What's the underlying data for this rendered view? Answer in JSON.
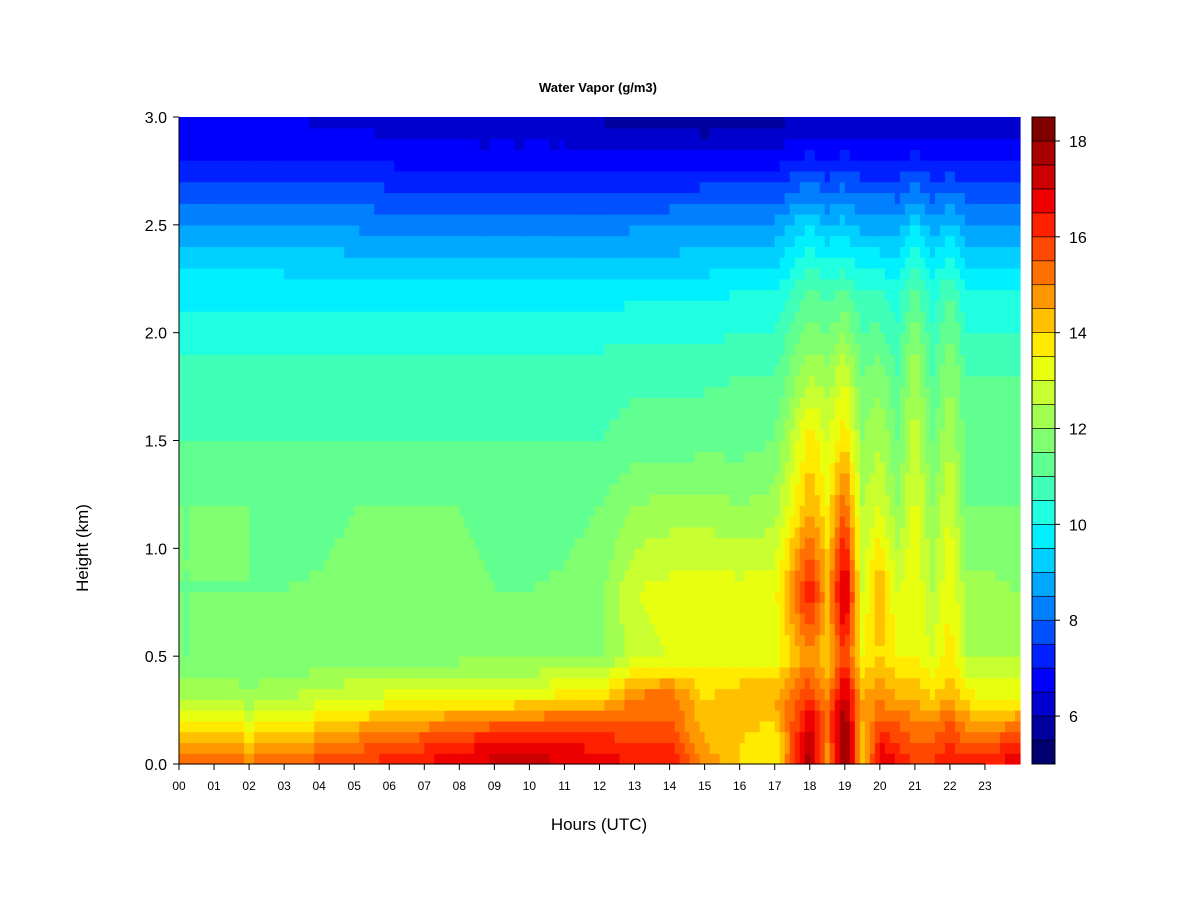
{
  "chart_data": {
    "type": "heatmap",
    "title": "Water Vapor (g/m3)",
    "xlabel": "Hours (UTC)",
    "ylabel": "Height (km)",
    "xlim": [
      0,
      24
    ],
    "ylim": [
      0.0,
      3.0
    ],
    "x_ticks": [
      "00",
      "01",
      "02",
      "03",
      "04",
      "05",
      "06",
      "07",
      "08",
      "09",
      "10",
      "11",
      "12",
      "13",
      "14",
      "15",
      "16",
      "17",
      "18",
      "19",
      "20",
      "21",
      "22",
      "23"
    ],
    "y_ticks": [
      "0.0",
      "0.5",
      "1.0",
      "1.5",
      "2.0",
      "2.5",
      "3.0"
    ],
    "colorbar": {
      "min": 5,
      "max": 18.5,
      "levels": [
        5,
        5.5,
        6,
        6.5,
        7,
        7.5,
        8,
        8.5,
        9,
        9.5,
        10,
        10.5,
        11,
        11.5,
        12,
        12.5,
        13,
        13.5,
        14,
        14.5,
        15,
        15.5,
        16,
        16.5,
        17,
        17.5,
        18,
        18.5
      ],
      "tick_labels": [
        "6",
        "8",
        "10",
        "12",
        "14",
        "16",
        "18"
      ],
      "colors": [
        "#00006f",
        "#00009f",
        "#0000cf",
        "#0000ff",
        "#0020ff",
        "#0050ff",
        "#0080ff",
        "#00a8ff",
        "#00d0ff",
        "#00f0ff",
        "#20ffe0",
        "#40ffb8",
        "#60ff90",
        "#80ff70",
        "#a0ff50",
        "#c8ff30",
        "#e8ff10",
        "#ffea00",
        "#ffc000",
        "#ff9800",
        "#ff7000",
        "#ff4800",
        "#ff2000",
        "#ee0000",
        "#cc0000",
        "#a80000",
        "#800000"
      ]
    },
    "x_hours": [
      0,
      1,
      2,
      3,
      4,
      5,
      6,
      7,
      8,
      9,
      10,
      11,
      12,
      13,
      14,
      15,
      16,
      17,
      18,
      18.5,
      19,
      19.5,
      20,
      20.5,
      21,
      21.5,
      22,
      22.5,
      23,
      23.8
    ],
    "y_km": [
      0.0,
      0.1,
      0.2,
      0.3,
      0.5,
      0.8,
      1.2,
      1.5,
      1.8,
      2.2,
      2.5,
      2.8,
      3.0
    ],
    "z_gm3": [
      [
        15.5,
        14.5,
        13.5,
        12.5,
        11.5,
        11.5,
        11.5,
        11.0,
        10.8,
        9.8,
        8.6,
        7.0,
        6.5
      ],
      [
        15.5,
        14.5,
        13.5,
        12.5,
        11.5,
        11.5,
        11.5,
        11.0,
        10.8,
        9.8,
        8.6,
        7.0,
        6.5
      ],
      [
        15.2,
        14.2,
        13.2,
        12.2,
        11.5,
        11.5,
        11.5,
        11.0,
        10.8,
        9.8,
        8.6,
        7.0,
        6.5
      ],
      [
        15.5,
        14.5,
        13.5,
        12.5,
        11.5,
        11.5,
        11.2,
        11.0,
        10.8,
        9.8,
        8.6,
        7.0,
        6.5
      ],
      [
        15.8,
        14.8,
        13.8,
        12.8,
        11.6,
        11.6,
        11.2,
        11.0,
        10.8,
        9.8,
        8.5,
        7.0,
        6.4
      ],
      [
        16.0,
        15.2,
        14.2,
        13.0,
        11.8,
        11.8,
        11.5,
        11.0,
        10.8,
        9.8,
        8.4,
        7.0,
        6.3
      ],
      [
        16.3,
        15.5,
        14.5,
        13.2,
        11.8,
        11.8,
        11.5,
        11.0,
        10.8,
        9.8,
        8.3,
        6.9,
        6.2
      ],
      [
        16.6,
        15.8,
        14.7,
        13.3,
        11.8,
        11.8,
        11.5,
        11.0,
        10.8,
        9.8,
        8.3,
        6.8,
        6.1
      ],
      [
        17.0,
        16.2,
        15.0,
        13.4,
        11.8,
        11.8,
        11.5,
        11.0,
        10.8,
        9.8,
        8.3,
        6.8,
        6.0
      ],
      [
        17.2,
        16.5,
        15.2,
        13.5,
        11.8,
        11.5,
        11.2,
        11.0,
        10.8,
        9.8,
        8.3,
        6.8,
        6.0
      ],
      [
        17.3,
        16.6,
        15.4,
        13.6,
        11.8,
        11.5,
        11.2,
        11.0,
        10.8,
        9.8,
        8.3,
        6.8,
        6.0
      ],
      [
        17.0,
        16.5,
        15.5,
        13.8,
        11.8,
        11.6,
        11.3,
        11.0,
        10.8,
        9.8,
        8.3,
        6.8,
        6.0
      ],
      [
        16.8,
        16.3,
        15.5,
        14.0,
        11.8,
        11.8,
        11.5,
        11.0,
        10.8,
        9.8,
        8.3,
        6.8,
        5.9
      ],
      [
        16.5,
        16.0,
        15.5,
        15.2,
        12.8,
        13.0,
        12.0,
        11.2,
        10.9,
        9.8,
        8.4,
        6.8,
        5.8
      ],
      [
        16.5,
        16.0,
        15.5,
        15.5,
        13.0,
        13.2,
        12.2,
        11.2,
        10.9,
        9.8,
        8.4,
        6.8,
        5.7
      ],
      [
        15.0,
        14.5,
        14.2,
        14.0,
        13.2,
        13.3,
        12.2,
        11.3,
        10.9,
        9.8,
        8.5,
        6.8,
        5.5
      ],
      [
        14.0,
        14.0,
        14.2,
        14.5,
        13.2,
        13.2,
        12.0,
        11.3,
        11.0,
        10.0,
        8.6,
        6.8,
        5.6
      ],
      [
        13.5,
        13.5,
        14.0,
        14.5,
        13.2,
        13.3,
        12.2,
        11.5,
        11.0,
        10.0,
        8.6,
        6.8,
        5.8
      ],
      [
        18.0,
        17.5,
        17.0,
        16.0,
        15.0,
        16.5,
        14.5,
        13.8,
        12.5,
        11.0,
        9.5,
        7.2,
        6.0
      ],
      [
        14.5,
        15.0,
        15.5,
        15.0,
        14.0,
        14.5,
        13.5,
        13.0,
        12.2,
        10.8,
        9.0,
        7.0,
        6.0
      ],
      [
        18.5,
        18.5,
        18.0,
        17.5,
        16.0,
        17.5,
        15.5,
        14.0,
        13.0,
        11.0,
        9.2,
        7.2,
        6.0
      ],
      [
        14.0,
        14.0,
        14.5,
        14.5,
        13.5,
        13.0,
        12.5,
        12.0,
        11.5,
        10.5,
        8.8,
        7.0,
        5.9
      ],
      [
        17.0,
        16.5,
        15.5,
        15.0,
        14.0,
        14.5,
        13.0,
        12.5,
        11.8,
        10.5,
        8.8,
        7.0,
        5.9
      ],
      [
        16.5,
        16.0,
        15.5,
        14.5,
        13.5,
        13.0,
        12.0,
        11.5,
        11.0,
        10.2,
        8.7,
        7.0,
        5.9
      ],
      [
        16.0,
        15.5,
        15.0,
        14.5,
        13.5,
        13.5,
        13.2,
        12.8,
        12.5,
        11.2,
        9.5,
        7.2,
        6.0
      ],
      [
        16.0,
        15.5,
        15.0,
        14.0,
        13.0,
        12.5,
        12.0,
        11.5,
        11.0,
        10.2,
        8.7,
        7.0,
        6.0
      ],
      [
        16.5,
        16.0,
        15.5,
        14.5,
        13.8,
        13.5,
        13.0,
        12.5,
        12.0,
        11.0,
        9.2,
        7.0,
        6.0
      ],
      [
        16.3,
        15.5,
        14.8,
        13.8,
        12.5,
        12.2,
        11.5,
        11.2,
        11.0,
        10.0,
        8.6,
        7.0,
        6.0
      ],
      [
        16.3,
        15.5,
        14.5,
        13.5,
        12.5,
        12.2,
        11.5,
        11.2,
        11.0,
        10.0,
        8.6,
        7.0,
        6.0
      ],
      [
        16.8,
        16.0,
        14.8,
        13.6,
        12.5,
        12.0,
        11.5,
        11.2,
        11.0,
        10.0,
        8.6,
        7.0,
        6.0
      ]
    ]
  }
}
